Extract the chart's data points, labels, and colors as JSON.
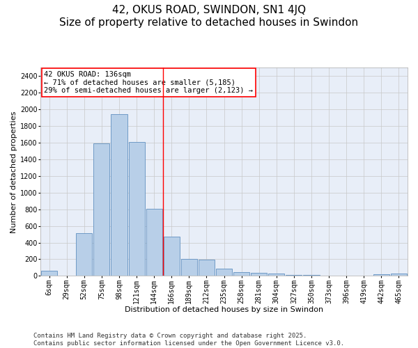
{
  "title": "42, OKUS ROAD, SWINDON, SN1 4JQ",
  "subtitle": "Size of property relative to detached houses in Swindon",
  "xlabel": "Distribution of detached houses by size in Swindon",
  "ylabel": "Number of detached properties",
  "categories": [
    "6sqm",
    "29sqm",
    "52sqm",
    "75sqm",
    "98sqm",
    "121sqm",
    "144sqm",
    "166sqm",
    "189sqm",
    "212sqm",
    "235sqm",
    "258sqm",
    "281sqm",
    "304sqm",
    "327sqm",
    "350sqm",
    "373sqm",
    "396sqm",
    "419sqm",
    "442sqm",
    "465sqm"
  ],
  "values": [
    60,
    0,
    510,
    1590,
    1940,
    1610,
    805,
    475,
    200,
    195,
    90,
    45,
    40,
    30,
    15,
    10,
    5,
    0,
    0,
    20,
    30
  ],
  "bar_color": "#b8cfe8",
  "bar_edge_color": "#6090c0",
  "vline_color": "red",
  "vline_pos": 6.5,
  "annotation_text": "42 OKUS ROAD: 136sqm\n← 71% of detached houses are smaller (5,185)\n29% of semi-detached houses are larger (2,123) →",
  "annotation_box_color": "white",
  "annotation_box_edge_color": "red",
  "ylim": [
    0,
    2500
  ],
  "yticks": [
    0,
    200,
    400,
    600,
    800,
    1000,
    1200,
    1400,
    1600,
    1800,
    2000,
    2200,
    2400
  ],
  "grid_color": "#c8c8c8",
  "background_color": "#e8eef8",
  "footer_text": "Contains HM Land Registry data © Crown copyright and database right 2025.\nContains public sector information licensed under the Open Government Licence v3.0.",
  "title_fontsize": 11,
  "xlabel_fontsize": 8,
  "ylabel_fontsize": 8,
  "tick_fontsize": 7,
  "annotation_fontsize": 7.5,
  "footer_fontsize": 6.5
}
